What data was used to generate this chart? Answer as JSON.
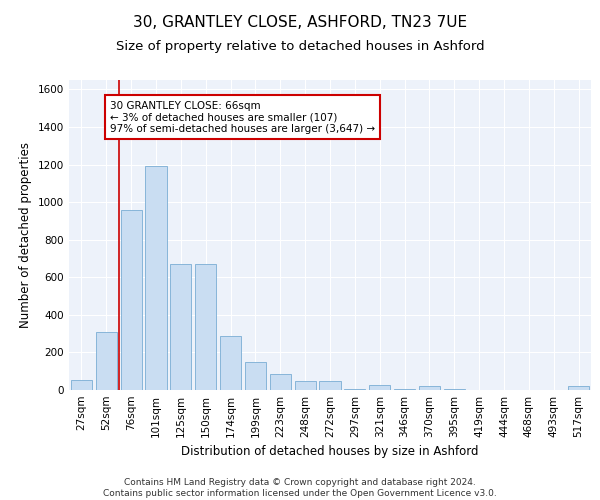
{
  "title_line1": "30, GRANTLEY CLOSE, ASHFORD, TN23 7UE",
  "title_line2": "Size of property relative to detached houses in Ashford",
  "xlabel": "Distribution of detached houses by size in Ashford",
  "ylabel": "Number of detached properties",
  "bar_labels": [
    "27sqm",
    "52sqm",
    "76sqm",
    "101sqm",
    "125sqm",
    "150sqm",
    "174sqm",
    "199sqm",
    "223sqm",
    "248sqm",
    "272sqm",
    "297sqm",
    "321sqm",
    "346sqm",
    "370sqm",
    "395sqm",
    "419sqm",
    "444sqm",
    "468sqm",
    "493sqm",
    "517sqm"
  ],
  "bar_values": [
    55,
    310,
    960,
    1190,
    670,
    670,
    290,
    150,
    85,
    50,
    50,
    5,
    25,
    5,
    20,
    5,
    0,
    0,
    0,
    0,
    20
  ],
  "bar_color": "#c9ddf2",
  "bar_edge_color": "#7aadd4",
  "property_line_x": 1.5,
  "ylim": [
    0,
    1650
  ],
  "yticks": [
    0,
    200,
    400,
    600,
    800,
    1000,
    1200,
    1400,
    1600
  ],
  "annotation_text": "30 GRANTLEY CLOSE: 66sqm\n← 3% of detached houses are smaller (107)\n97% of semi-detached houses are larger (3,647) →",
  "annotation_box_color": "#ffffff",
  "annotation_border_color": "#cc0000",
  "footer_text": "Contains HM Land Registry data © Crown copyright and database right 2024.\nContains public sector information licensed under the Open Government Licence v3.0.",
  "background_color": "#edf2fa",
  "grid_color": "#ffffff",
  "title_fontsize": 11,
  "subtitle_fontsize": 9.5,
  "axis_label_fontsize": 8.5,
  "tick_fontsize": 7.5,
  "annotation_fontsize": 7.5,
  "footer_fontsize": 6.5
}
